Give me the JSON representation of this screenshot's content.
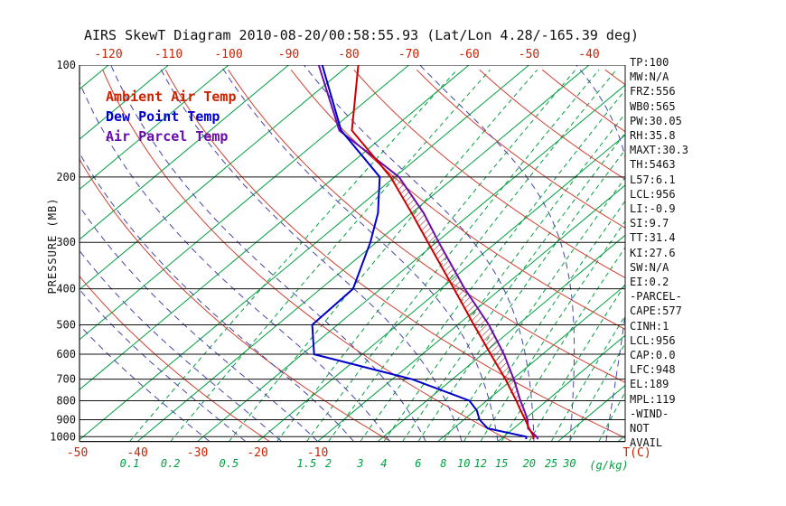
{
  "title": "AIRS SkewT Diagram 2010-08-20/00:58:55.93 (Lat/Lon 4.28/-165.39 deg)",
  "legend": [
    {
      "label": "Ambient Air Temp",
      "color": "#cc2200"
    },
    {
      "label": "Dew Point Temp",
      "color": "#0000cc"
    },
    {
      "label": "Air Parcel Temp",
      "color": "#6a0dad"
    }
  ],
  "axes": {
    "y_axis_label": "PRESSURE (MB)",
    "pressure_ticks_mb": [
      100,
      200,
      300,
      400,
      500,
      600,
      700,
      800,
      900,
      1000
    ],
    "top_temperature_ticks_c": [
      -120,
      -110,
      -100,
      -90,
      -80,
      -70,
      -60,
      -50,
      -40
    ],
    "bottom_temperature_ticks_c": [
      -50,
      -40,
      -30,
      -20,
      -10
    ],
    "temperature_unit_label": "T(C)",
    "mixing_ratio_unit_label": "(g/kg)",
    "mixing_ratio_labels_gkg": [
      0.1,
      0.2,
      0.5,
      1.5,
      2,
      3,
      4,
      6,
      8,
      10,
      12,
      15,
      20,
      25,
      30
    ]
  },
  "chart_data": {
    "type": "line",
    "title": "AIRS Skew-T log-P sounding",
    "x_axis": {
      "label": "Temperature (C)",
      "skewed": true
    },
    "y_axis": {
      "label": "Pressure (mb)",
      "scale": "log",
      "range": [
        100,
        1030
      ]
    },
    "legend_position": "top-left-inside",
    "series": [
      {
        "name": "Ambient Air Temp",
        "color": "#cc0000",
        "points_p_t": [
          [
            1015,
            25.4
          ],
          [
            1000,
            25.0
          ],
          [
            950,
            22.6
          ],
          [
            900,
            20.2
          ],
          [
            850,
            17.6
          ],
          [
            800,
            14.9
          ],
          [
            700,
            8.8
          ],
          [
            600,
            1.4
          ],
          [
            500,
            -7.3
          ],
          [
            400,
            -17.8
          ],
          [
            300,
            -31.4
          ],
          [
            250,
            -40.0
          ],
          [
            200,
            -50.7
          ],
          [
            150,
            -66.4
          ],
          [
            100,
            -78.4
          ]
        ]
      },
      {
        "name": "Dew Point Temp",
        "color": "#0000cc",
        "points_p_t": [
          [
            1015,
            24.2
          ],
          [
            1000,
            23.8
          ],
          [
            950,
            15.7
          ],
          [
            900,
            12.6
          ],
          [
            850,
            10.3
          ],
          [
            800,
            7.1
          ],
          [
            700,
            -6.8
          ],
          [
            600,
            -28.0
          ],
          [
            500,
            -34.2
          ],
          [
            400,
            -34.6
          ],
          [
            300,
            -41.0
          ],
          [
            250,
            -45.6
          ],
          [
            200,
            -52.5
          ],
          [
            150,
            -68.2
          ],
          [
            100,
            -84.4
          ]
        ]
      },
      {
        "name": "Air Parcel Temp",
        "color": "#6a0dad",
        "points_p_t": [
          [
            1015,
            26.2
          ],
          [
            1000,
            25.5
          ],
          [
            950,
            22.4
          ],
          [
            900,
            20.6
          ],
          [
            850,
            18.2
          ],
          [
            800,
            15.6
          ],
          [
            700,
            10.2
          ],
          [
            600,
            3.6
          ],
          [
            500,
            -4.8
          ],
          [
            400,
            -16.0
          ],
          [
            300,
            -29.6
          ],
          [
            250,
            -38.0
          ],
          [
            200,
            -49.3
          ],
          [
            150,
            -68.5
          ],
          [
            100,
            -85.0
          ]
        ]
      }
    ],
    "background_lines": {
      "isotherms_c": {
        "from": -150,
        "to": 40,
        "step": 10,
        "color": "#00a040"
      },
      "dry_adiabats_k": {
        "from": 253,
        "to": 453,
        "step": 20,
        "color": "#d04030"
      },
      "moist_adiabats_start_c": {
        "from": -28,
        "to": 38,
        "step": 6,
        "color": "#4444aa"
      },
      "mixing_ratio_lines_gkg": [
        0.1,
        0.2,
        0.5,
        1,
        1.5,
        2,
        3,
        4,
        5,
        6,
        8,
        10,
        12,
        15,
        20,
        25,
        30,
        40
      ],
      "pressure_lines_mb": [
        100,
        200,
        300,
        400,
        500,
        600,
        700,
        800,
        900,
        1000
      ]
    },
    "cape_hatch_pressure_range_mb": [
      945,
      196
    ]
  },
  "readouts": [
    "TP:100",
    "MW:N/A",
    "FRZ:556",
    "WB0:565",
    "PW:30.05",
    "RH:35.8",
    "MAXT:30.3",
    "TH:5463",
    "L57:6.1",
    "LCL:956",
    "LI:-0.9",
    "SI:9.7",
    "TT:31.4",
    "KI:27.6",
    "SW:N/A",
    "EI:0.2",
    "-PARCEL-",
    "CAPE:577",
    "CINH:1",
    "LCL:956",
    "CAP:0.0",
    "LFC:948",
    "EL:189",
    "MPL:119",
    "-WIND-",
    "NOT",
    "AVAIL"
  ]
}
